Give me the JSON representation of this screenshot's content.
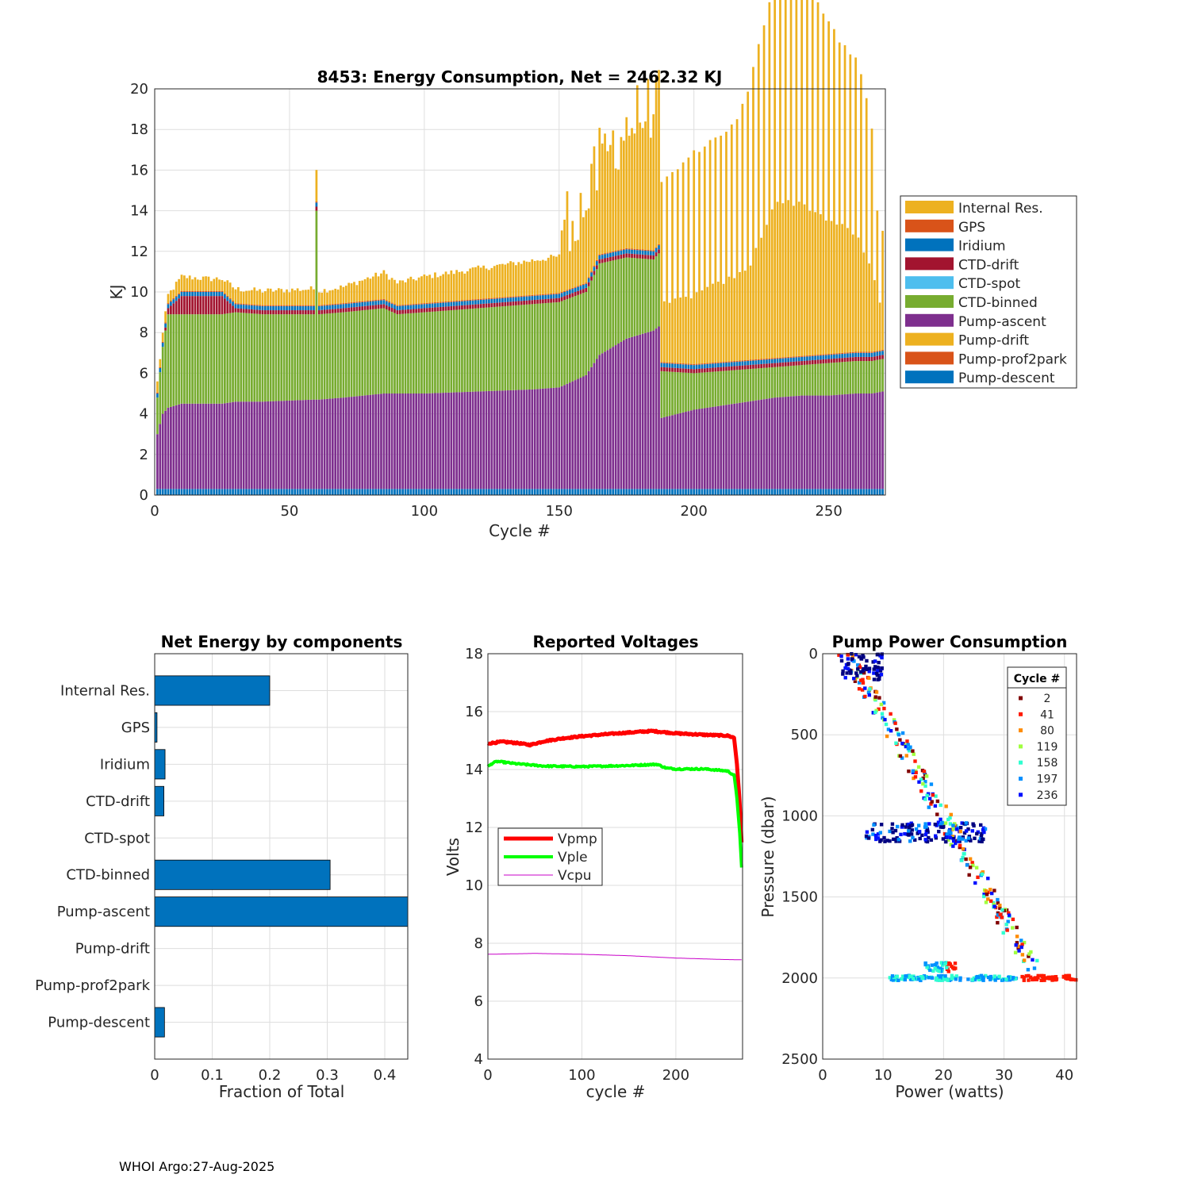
{
  "footer": "WHOI Argo:27-Aug-2025",
  "colors": {
    "internal_res": "#EDB120",
    "gps": "#D95319",
    "iridium": "#0072BD",
    "ctd_drift": "#A2142F",
    "ctd_spot": "#4DBEEE",
    "ctd_binned": "#77AC30",
    "pump_ascent": "#7E2F8E",
    "pump_drift": "#EDB120",
    "pump_prof2park": "#D95319",
    "pump_descent": "#0072BD",
    "grid": "#dedede",
    "axis": "#262626"
  },
  "chart_data": [
    {
      "type": "bar",
      "stacked": true,
      "title": "8453: Energy Consumption,  Net = 2462.32 KJ",
      "xlabel": "Cycle #",
      "ylabel": "KJ",
      "xlim": [
        0,
        271
      ],
      "ylim": [
        0,
        20
      ],
      "xticks": [
        0,
        50,
        100,
        150,
        200,
        250
      ],
      "yticks": [
        0,
        2,
        4,
        6,
        8,
        10,
        12,
        14,
        16,
        18,
        20
      ],
      "legend_position": "outside-right",
      "legend": [
        "Internal Res.",
        "GPS",
        "Iridium",
        "CTD-drift",
        "CTD-spot",
        "CTD-binned",
        "Pump-ascent",
        "Pump-drift",
        "Pump-prof2park",
        "Pump-descent"
      ],
      "series_stack_order": [
        "Pump-descent",
        "Pump-ascent",
        "CTD-binned",
        "CTD-drift",
        "Iridium",
        "GPS",
        "Internal Res."
      ],
      "keypoints": {
        "cycles": [
          1,
          3,
          5,
          10,
          20,
          25,
          30,
          40,
          59,
          60,
          61,
          70,
          85,
          90,
          100,
          120,
          140,
          150,
          160,
          165,
          175,
          185,
          187,
          188,
          200,
          220,
          230,
          240,
          250,
          260,
          266,
          270
        ],
        "pump_descent": [
          0.3,
          0.3,
          0.3,
          0.3,
          0.3,
          0.3,
          0.3,
          0.3,
          0.3,
          0.3,
          0.3,
          0.3,
          0.3,
          0.3,
          0.3,
          0.3,
          0.3,
          0.3,
          0.3,
          0.3,
          0.3,
          0.3,
          0.3,
          0.3,
          0.3,
          0.3,
          0.3,
          0.3,
          0.3,
          0.3,
          0.3,
          0.3
        ],
        "pump_ascent": [
          2.7,
          3.7,
          4.0,
          4.2,
          4.2,
          4.2,
          4.3,
          4.3,
          4.4,
          4.4,
          4.4,
          4.5,
          4.7,
          4.7,
          4.7,
          4.8,
          4.9,
          5.0,
          5.6,
          6.6,
          7.4,
          7.8,
          8.0,
          3.5,
          3.9,
          4.3,
          4.5,
          4.6,
          4.6,
          4.7,
          4.7,
          4.8
        ],
        "ctd_binned": [
          1.8,
          3.3,
          4.6,
          4.4,
          4.4,
          4.4,
          4.4,
          4.3,
          4.2,
          9.3,
          4.2,
          4.2,
          4.2,
          3.9,
          4.0,
          4.1,
          4.2,
          4.2,
          4.1,
          4.5,
          4.0,
          3.5,
          3.6,
          2.3,
          1.8,
          1.6,
          1.5,
          1.5,
          1.6,
          1.6,
          1.6,
          1.6
        ],
        "ctd_drift": [
          0.0,
          0.0,
          0.3,
          0.9,
          0.9,
          0.9,
          0.2,
          0.2,
          0.2,
          0.2,
          0.2,
          0.2,
          0.2,
          0.2,
          0.2,
          0.2,
          0.2,
          0.2,
          0.2,
          0.2,
          0.2,
          0.2,
          0.2,
          0.2,
          0.2,
          0.2,
          0.2,
          0.2,
          0.2,
          0.2,
          0.2,
          0.2
        ],
        "iridium": [
          0.2,
          0.2,
          0.2,
          0.2,
          0.2,
          0.2,
          0.2,
          0.2,
          0.2,
          0.2,
          0.2,
          0.2,
          0.2,
          0.2,
          0.2,
          0.2,
          0.2,
          0.2,
          0.2,
          0.2,
          0.2,
          0.2,
          0.2,
          0.2,
          0.2,
          0.2,
          0.2,
          0.2,
          0.2,
          0.2,
          0.2,
          0.2
        ],
        "gps": [
          0.05,
          0.05,
          0.05,
          0.05,
          0.05,
          0.05,
          0.05,
          0.05,
          0.05,
          0.05,
          0.05,
          0.05,
          0.05,
          0.05,
          0.05,
          0.05,
          0.05,
          0.05,
          0.05,
          0.05,
          0.05,
          0.05,
          0.05,
          0.05,
          0.05,
          0.05,
          0.05,
          0.05,
          0.05,
          0.05,
          0.05,
          0.05
        ],
        "internal_res": [
          0.5,
          0.4,
          0.4,
          0.7,
          0.6,
          0.6,
          0.7,
          0.7,
          0.8,
          1.7,
          0.7,
          0.8,
          1.3,
          1.1,
          1.3,
          1.5,
          1.7,
          1.8,
          2.0,
          2.8,
          4.2,
          5.4,
          5.3,
          2.8,
          3.4,
          4.4,
          7.7,
          7.5,
          6.6,
          5.8,
          4.0,
          1.8
        ]
      },
      "spike_cycles_even_from": 188,
      "spike_extra_internal_res": {
        "cycles": [
          188,
          200,
          215,
          223,
          230,
          236,
          245,
          255,
          262,
          266,
          268
        ],
        "values": [
          6.0,
          7.0,
          7.5,
          9.5,
          11.0,
          11.5,
          10.5,
          9.0,
          8.5,
          7.0,
          4.0
        ]
      }
    },
    {
      "type": "hbar",
      "title": "Net Energy by components",
      "xlabel": "Fraction of Total",
      "xlim": [
        0,
        0.44
      ],
      "xticks": [
        0,
        0.1,
        0.2,
        0.3,
        0.4
      ],
      "xtick_labels": [
        "0",
        "0.1",
        "0.2",
        "0.3",
        "0.4"
      ],
      "categories": [
        "Internal Res.",
        "GPS",
        "Iridium",
        "CTD-drift",
        "CTD-spot",
        "CTD-binned",
        "Pump-ascent",
        "Pump-drift",
        "Pump-prof2park",
        "Pump-descent"
      ],
      "values": [
        0.2,
        0.004,
        0.018,
        0.016,
        0.0,
        0.305,
        0.44,
        0.0,
        0.0,
        0.017
      ]
    },
    {
      "type": "line",
      "title": "Reported Voltages",
      "xlabel": "cycle #",
      "ylabel": "Volts",
      "xlim": [
        0,
        271
      ],
      "ylim": [
        4,
        18
      ],
      "xticks": [
        0,
        100,
        200
      ],
      "yticks": [
        4,
        6,
        8,
        10,
        12,
        14,
        16,
        18
      ],
      "legend_position": "middle-left",
      "series": [
        {
          "name": "Vpmp",
          "color": "#ff0000",
          "width": 5,
          "x": [
            0,
            5,
            15,
            30,
            45,
            60,
            80,
            100,
            130,
            160,
            175,
            200,
            230,
            255,
            262,
            265,
            268,
            270
          ],
          "y": [
            14.9,
            14.92,
            14.96,
            14.92,
            14.85,
            14.98,
            15.08,
            15.15,
            15.23,
            15.3,
            15.33,
            15.25,
            15.2,
            15.17,
            15.1,
            14.2,
            12.8,
            11.5
          ]
        },
        {
          "name": "Vple",
          "color": "#00ff00",
          "width": 4,
          "x": [
            0,
            5,
            10,
            30,
            60,
            100,
            150,
            180,
            190,
            200,
            230,
            255,
            262,
            265,
            268,
            270
          ],
          "y": [
            14.1,
            14.22,
            14.28,
            14.2,
            14.12,
            14.1,
            14.14,
            14.18,
            14.05,
            14.02,
            14.02,
            13.95,
            13.8,
            13.0,
            11.8,
            10.6
          ]
        },
        {
          "name": "Vcpu",
          "color": "#c800c8",
          "width": 1,
          "x": [
            0,
            50,
            100,
            150,
            200,
            250,
            270
          ],
          "y": [
            7.62,
            7.65,
            7.62,
            7.57,
            7.49,
            7.44,
            7.43
          ]
        }
      ]
    },
    {
      "type": "scatter",
      "title": "Pump Power Consumption",
      "xlabel": "Power (watts)",
      "ylabel": "Pressure (dbar)",
      "xlim": [
        0,
        42
      ],
      "ylim": [
        0,
        2500
      ],
      "y_reversed": true,
      "xticks": [
        0,
        10,
        20,
        30,
        40
      ],
      "yticks": [
        0,
        500,
        1000,
        1500,
        2000,
        2500
      ],
      "legend_title": "Cycle #",
      "legend_position": "top-right",
      "legend": [
        {
          "label": "2",
          "color": "#800000"
        },
        {
          "label": "41",
          "color": "#ff1a00"
        },
        {
          "label": "80",
          "color": "#ff8c00"
        },
        {
          "label": "119",
          "color": "#a0ff40"
        },
        {
          "label": "158",
          "color": "#30ffd0"
        },
        {
          "label": "197",
          "color": "#0090ff"
        },
        {
          "label": "236",
          "color": "#0010ff"
        }
      ],
      "point_groups": [
        {
          "name": "ascent-diagonal",
          "x_range": [
            4,
            37
          ],
          "y_range": [
            0,
            1950
          ],
          "count": 240
        },
        {
          "name": "park-bottom",
          "x_range": [
            11,
            42
          ],
          "y_range": [
            1985,
            2015
          ],
          "count": 180
        },
        {
          "name": "park-bottom-lift",
          "x_range": [
            17,
            22
          ],
          "y_range": [
            1905,
            1960
          ],
          "count": 40
        },
        {
          "name": "park-1000",
          "x_range": [
            7,
            27
          ],
          "y_range": [
            1040,
            1160
          ],
          "count": 140
        },
        {
          "name": "near-surface-cluster",
          "x_range": [
            3,
            10
          ],
          "y_range": [
            0,
            160
          ],
          "count": 60
        }
      ]
    }
  ]
}
